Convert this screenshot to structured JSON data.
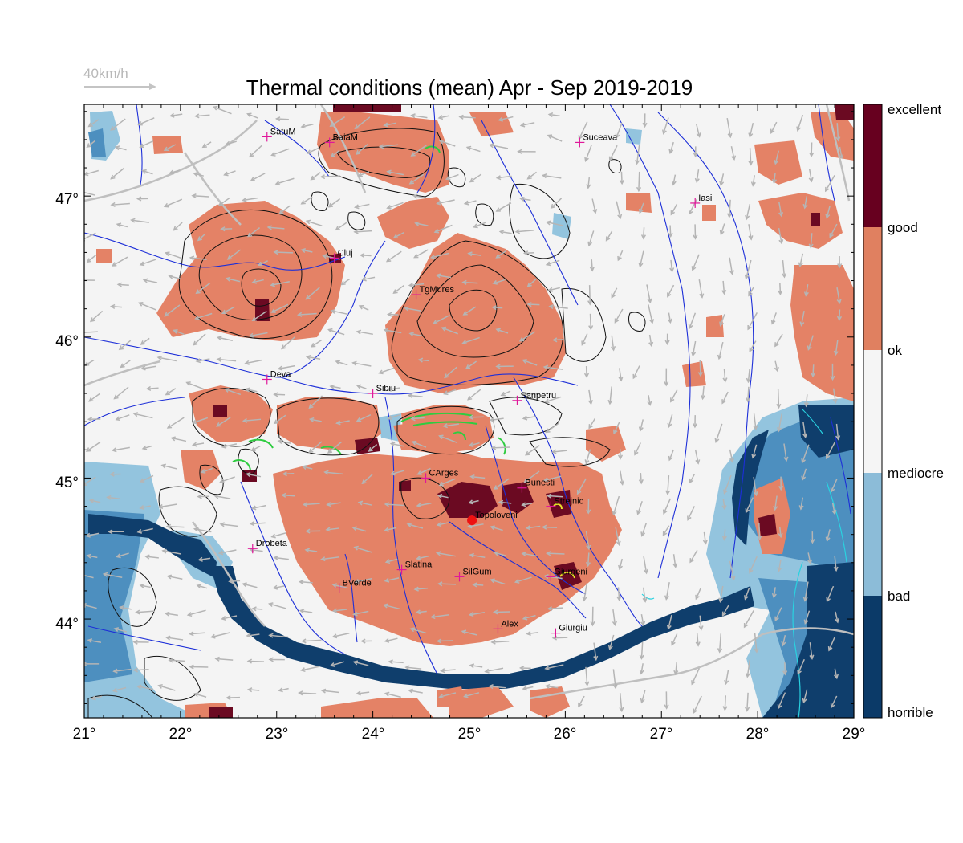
{
  "title": "Thermal conditions (mean) Apr - Sep  2019-2019",
  "wind_legend": {
    "label": "40km/h"
  },
  "axes": {
    "x_ticks": [
      "21°",
      "22°",
      "23°",
      "24°",
      "25°",
      "26°",
      "27°",
      "28°",
      "29°"
    ],
    "y_ticks": [
      "44°",
      "45°",
      "46°",
      "47°"
    ],
    "x_range": [
      21,
      29
    ],
    "y_range": [
      43.3,
      47.65
    ]
  },
  "colorbar": {
    "labels": [
      "excellent",
      "good",
      "ok",
      "mediocre",
      "bad",
      "horrible"
    ],
    "colors": [
      "#67001f",
      "#e08060",
      "#f5f5f5",
      "#8cbcd8",
      "#4d8fbf",
      "#0b3a68"
    ]
  },
  "colors": {
    "ok": "#f4f4f4",
    "good": "#e48266",
    "excellent": "#6b0a22",
    "mediocre": "#93c4de",
    "bad": "#4d8fbf",
    "horrible": "#0f3e6c",
    "river": "#1d2fd8",
    "road": "#bfbfbf",
    "city_marker": "#e0179a",
    "highlight": "#ee1111"
  },
  "cities": [
    {
      "name": "SatuM",
      "lon": 22.9,
      "lat": 47.42
    },
    {
      "name": "BaiaM",
      "lon": 23.55,
      "lat": 47.38
    },
    {
      "name": "Suceava",
      "lon": 26.15,
      "lat": 47.38
    },
    {
      "name": "Iasi",
      "lon": 27.35,
      "lat": 46.95
    },
    {
      "name": "Cluj",
      "lon": 23.6,
      "lat": 46.56
    },
    {
      "name": "TgMures",
      "lon": 24.45,
      "lat": 46.3
    },
    {
      "name": "Deva",
      "lon": 22.9,
      "lat": 45.7
    },
    {
      "name": "Sibiu",
      "lon": 24.0,
      "lat": 45.6
    },
    {
      "name": "Sanpetru",
      "lon": 25.5,
      "lat": 45.55
    },
    {
      "name": "CArges",
      "lon": 24.55,
      "lat": 45.0
    },
    {
      "name": "Bunesti",
      "lon": 25.55,
      "lat": 44.93
    },
    {
      "name": "Strejnic",
      "lon": 25.85,
      "lat": 44.8
    },
    {
      "name": "Topoloveni",
      "lon": 25.03,
      "lat": 44.7
    },
    {
      "name": "Drobeta",
      "lon": 22.75,
      "lat": 44.5
    },
    {
      "name": "Slatina",
      "lon": 24.3,
      "lat": 44.35
    },
    {
      "name": "SilGum",
      "lon": 24.9,
      "lat": 44.3
    },
    {
      "name": "Giurgeni",
      "lon": 25.85,
      "lat": 44.3
    },
    {
      "name": "BVerde",
      "lon": 23.65,
      "lat": 44.22
    },
    {
      "name": "Alex",
      "lon": 25.3,
      "lat": 43.93
    },
    {
      "name": "Giurgiu",
      "lon": 25.9,
      "lat": 43.9
    }
  ],
  "highlight_point": {
    "name": "Topoloveni",
    "lon": 25.03,
    "lat": 44.7
  }
}
